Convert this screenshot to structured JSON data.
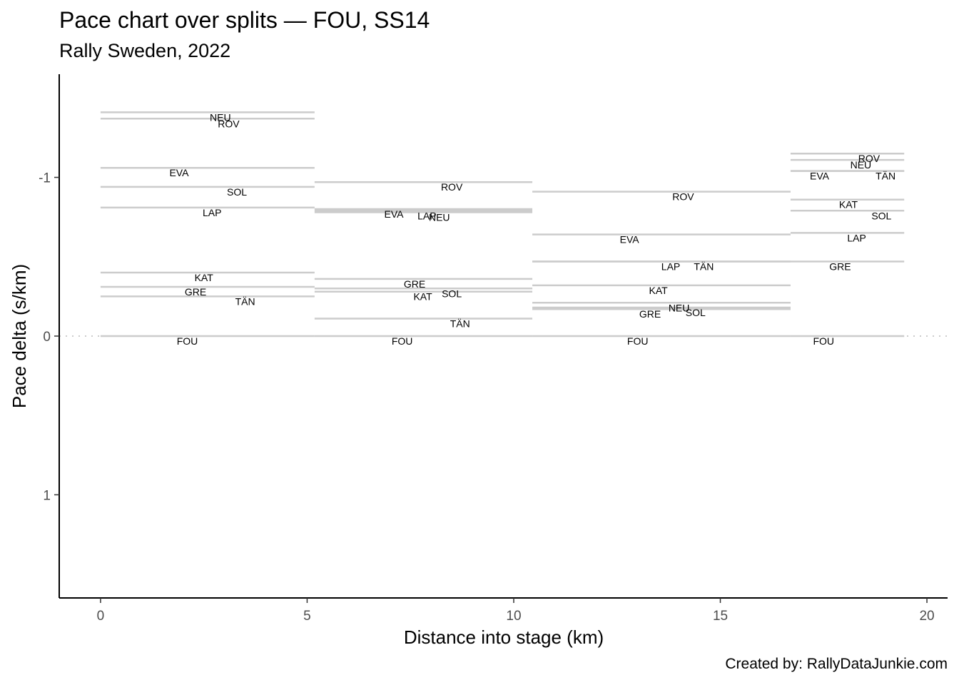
{
  "title": "Pace chart over splits — FOU, SS14",
  "subtitle": "Rally Sweden, 2022",
  "caption": "Created by: RallyDataJunkie.com",
  "chart_data": {
    "type": "line",
    "title": "Pace chart over splits — FOU, SS14",
    "subtitle": "Rally Sweden, 2022",
    "xlabel": "Distance into stage (km)",
    "ylabel": "Pace delta (s/km)",
    "xlim": [
      -1,
      20.5
    ],
    "ylim": [
      1.65,
      -1.65
    ],
    "y_reversed": true,
    "x_ticks": [
      0,
      5,
      10,
      15,
      20
    ],
    "x_tick_labels": [
      "0",
      "5",
      "10",
      "15",
      "20"
    ],
    "y_ticks": [
      -1,
      0,
      1
    ],
    "y_tick_labels": [
      "-1",
      "0",
      "1"
    ],
    "reference_line": {
      "y": 0,
      "style": "dotted"
    },
    "grid": false,
    "line_color": "#cccccc",
    "splits": [
      {
        "start": 0,
        "end": 5.18,
        "drivers": [
          {
            "code": "NEU",
            "pace": -1.41,
            "label_x": 2.9
          },
          {
            "code": "ROV",
            "pace": -1.37,
            "label_x": 3.1
          },
          {
            "code": "EVA",
            "pace": -1.06,
            "label_x": 1.9
          },
          {
            "code": "SOL",
            "pace": -0.94,
            "label_x": 3.3
          },
          {
            "code": "LAP",
            "pace": -0.81,
            "label_x": 2.7
          },
          {
            "code": "KAT",
            "pace": -0.4,
            "label_x": 2.5
          },
          {
            "code": "GRE",
            "pace": -0.31,
            "label_x": 2.3
          },
          {
            "code": "TÄN",
            "pace": -0.25,
            "label_x": 3.5
          },
          {
            "code": "FOU",
            "pace": 0,
            "label_x": 2.1
          }
        ]
      },
      {
        "start": 5.18,
        "end": 10.45,
        "drivers": [
          {
            "code": "ROV",
            "pace": -0.97,
            "label_x": 8.5
          },
          {
            "code": "EVA",
            "pace": -0.8,
            "label_x": 7.1
          },
          {
            "code": "LAP",
            "pace": -0.79,
            "label_x": 7.9
          },
          {
            "code": "NEU",
            "pace": -0.78,
            "label_x": 8.2
          },
          {
            "code": "GRE",
            "pace": -0.36,
            "label_x": 7.6
          },
          {
            "code": "SOL",
            "pace": -0.3,
            "label_x": 8.5
          },
          {
            "code": "KAT",
            "pace": -0.28,
            "label_x": 7.8
          },
          {
            "code": "TÄN",
            "pace": -0.11,
            "label_x": 8.7
          },
          {
            "code": "FOU",
            "pace": 0,
            "label_x": 7.3
          }
        ]
      },
      {
        "start": 10.45,
        "end": 16.7,
        "drivers": [
          {
            "code": "ROV",
            "pace": -0.91,
            "label_x": 14.1
          },
          {
            "code": "EVA",
            "pace": -0.64,
            "label_x": 12.8
          },
          {
            "code": "LAP",
            "pace": -0.47,
            "label_x": 13.8
          },
          {
            "code": "TÄN",
            "pace": -0.47,
            "label_x": 14.6
          },
          {
            "code": "KAT",
            "pace": -0.32,
            "label_x": 13.5
          },
          {
            "code": "NEU",
            "pace": -0.21,
            "label_x": 14.0
          },
          {
            "code": "SOL",
            "pace": -0.18,
            "label_x": 14.4
          },
          {
            "code": "GRE",
            "pace": -0.17,
            "label_x": 13.3
          },
          {
            "code": "FOU",
            "pace": 0,
            "label_x": 13.0
          }
        ]
      },
      {
        "start": 16.7,
        "end": 19.45,
        "drivers": [
          {
            "code": "ROV",
            "pace": -1.15,
            "label_x": 18.6
          },
          {
            "code": "NEU",
            "pace": -1.11,
            "label_x": 18.4
          },
          {
            "code": "EVA",
            "pace": -1.04,
            "label_x": 17.4
          },
          {
            "code": "TÄN",
            "pace": -1.04,
            "label_x": 19.0
          },
          {
            "code": "KAT",
            "pace": -0.86,
            "label_x": 18.1
          },
          {
            "code": "SOL",
            "pace": -0.79,
            "label_x": 18.9
          },
          {
            "code": "LAP",
            "pace": -0.65,
            "label_x": 18.3
          },
          {
            "code": "GRE",
            "pace": -0.47,
            "label_x": 17.9
          },
          {
            "code": "FOU",
            "pace": 0,
            "label_x": 17.5
          }
        ]
      }
    ]
  }
}
